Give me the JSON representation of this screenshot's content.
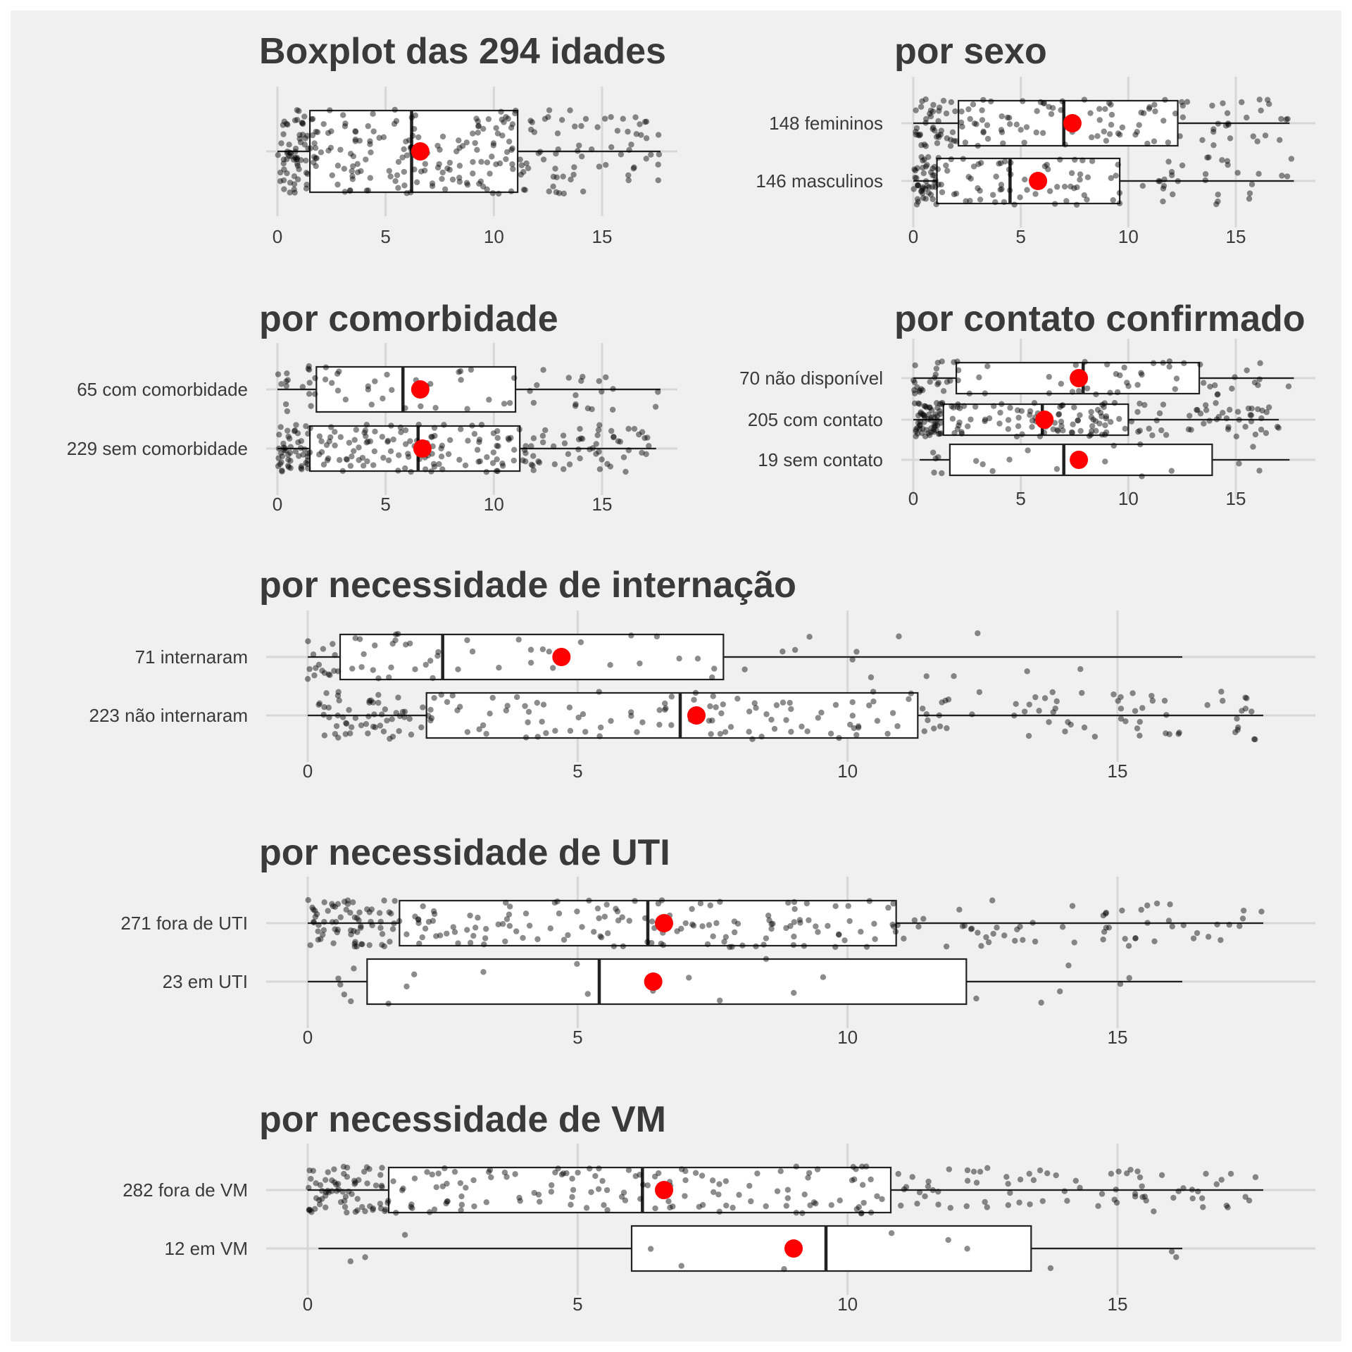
{
  "colors": {
    "background": "#f0f0f0",
    "grid": "#d7d7d7",
    "box_fill": "#ffffff",
    "box_line": "#222222",
    "points": "#000000",
    "mean": "#ff0000"
  },
  "chart_data": [
    {
      "type": "boxplot",
      "title": "Boxplot das 294 idades",
      "orientation": "horizontal",
      "xlim": [
        0,
        17.7
      ],
      "x_ticks": [
        0,
        5,
        10,
        15
      ],
      "grid": true,
      "categories": [
        ""
      ],
      "series": [
        {
          "label": "",
          "n": 294,
          "min": 0,
          "q1": 1.5,
          "median": 6.2,
          "q3": 11.1,
          "max": 17.7,
          "mean": 6.6
        }
      ]
    },
    {
      "type": "boxplot",
      "title": "por sexo",
      "orientation": "horizontal",
      "xlim": [
        0,
        17.7
      ],
      "x_ticks": [
        0,
        5,
        10,
        15
      ],
      "grid": true,
      "categories": [
        "148 femininos",
        "146 masculinos"
      ],
      "series": [
        {
          "label": "148 femininos",
          "n": 148,
          "min": 0,
          "q1": 2.1,
          "median": 7.0,
          "q3": 12.3,
          "max": 17.5,
          "mean": 7.4
        },
        {
          "label": "146 masculinos",
          "n": 146,
          "min": 0,
          "q1": 1.1,
          "median": 4.5,
          "q3": 9.6,
          "max": 17.7,
          "mean": 5.8
        }
      ]
    },
    {
      "type": "boxplot",
      "title": "por comorbidade",
      "orientation": "horizontal",
      "xlim": [
        0,
        17.7
      ],
      "x_ticks": [
        0,
        5,
        10,
        15
      ],
      "grid": true,
      "categories": [
        "65 com comorbidade",
        "229 sem comorbidade"
      ],
      "series": [
        {
          "label": "65 com comorbidade",
          "n": 65,
          "min": 0,
          "q1": 1.8,
          "median": 5.8,
          "q3": 11.0,
          "max": 17.7,
          "mean": 6.6
        },
        {
          "label": "229 sem comorbidade",
          "n": 229,
          "min": 0,
          "q1": 1.5,
          "median": 6.5,
          "q3": 11.2,
          "max": 17.5,
          "mean": 6.7
        }
      ]
    },
    {
      "type": "boxplot",
      "title": "por contato confirmado",
      "orientation": "horizontal",
      "xlim": [
        0,
        17.7
      ],
      "x_ticks": [
        0,
        5,
        10,
        15
      ],
      "grid": true,
      "categories": [
        "70 não disponível",
        "205 com contato",
        "19 sem contato"
      ],
      "series": [
        {
          "label": "70 não disponível",
          "n": 70,
          "min": 0,
          "q1": 2.0,
          "median": 7.9,
          "q3": 13.3,
          "max": 17.7,
          "mean": 7.7
        },
        {
          "label": "205 com contato",
          "n": 205,
          "min": 0,
          "q1": 1.4,
          "median": 6.0,
          "q3": 10.0,
          "max": 17.0,
          "mean": 6.1
        },
        {
          "label": "19 sem contato",
          "n": 19,
          "min": 0.3,
          "q1": 1.7,
          "median": 7.0,
          "q3": 13.9,
          "max": 17.5,
          "mean": 7.7
        }
      ]
    },
    {
      "type": "boxplot",
      "title": "por necessidade de internação",
      "orientation": "horizontal",
      "xlim": [
        0,
        17.7
      ],
      "x_ticks": [
        0,
        5,
        10,
        15
      ],
      "grid": true,
      "categories": [
        "71 internaram",
        "223 não internaram"
      ],
      "series": [
        {
          "label": "71 internaram",
          "n": 71,
          "min": 0,
          "q1": 0.6,
          "median": 2.5,
          "q3": 7.7,
          "max": 16.2,
          "mean": 4.7
        },
        {
          "label": "223 não internaram",
          "n": 223,
          "min": 0,
          "q1": 2.2,
          "median": 6.9,
          "q3": 11.3,
          "max": 17.7,
          "mean": 7.2
        }
      ]
    },
    {
      "type": "boxplot",
      "title": "por necessidade de UTI",
      "orientation": "horizontal",
      "xlim": [
        0,
        17.7
      ],
      "x_ticks": [
        0,
        5,
        10,
        15
      ],
      "grid": true,
      "categories": [
        "271 fora de UTI",
        "23 em UTI"
      ],
      "series": [
        {
          "label": "271 fora de UTI",
          "n": 271,
          "min": 0,
          "q1": 1.7,
          "median": 6.3,
          "q3": 10.9,
          "max": 17.7,
          "mean": 6.6
        },
        {
          "label": "23 em UTI",
          "n": 23,
          "min": 0,
          "q1": 1.1,
          "median": 5.4,
          "q3": 12.2,
          "max": 16.2,
          "mean": 6.4
        }
      ]
    },
    {
      "type": "boxplot",
      "title": "por necessidade de VM",
      "orientation": "horizontal",
      "xlim": [
        0,
        17.7
      ],
      "x_ticks": [
        0,
        5,
        10,
        15
      ],
      "grid": true,
      "categories": [
        "282 fora de VM",
        "12 em VM"
      ],
      "series": [
        {
          "label": "282 fora de VM",
          "n": 282,
          "min": 0,
          "q1": 1.5,
          "median": 6.2,
          "q3": 10.8,
          "max": 17.7,
          "mean": 6.6
        },
        {
          "label": "12 em VM",
          "n": 12,
          "min": 0.2,
          "q1": 6.0,
          "median": 9.6,
          "q3": 13.4,
          "max": 16.2,
          "mean": 9.0
        }
      ]
    }
  ]
}
